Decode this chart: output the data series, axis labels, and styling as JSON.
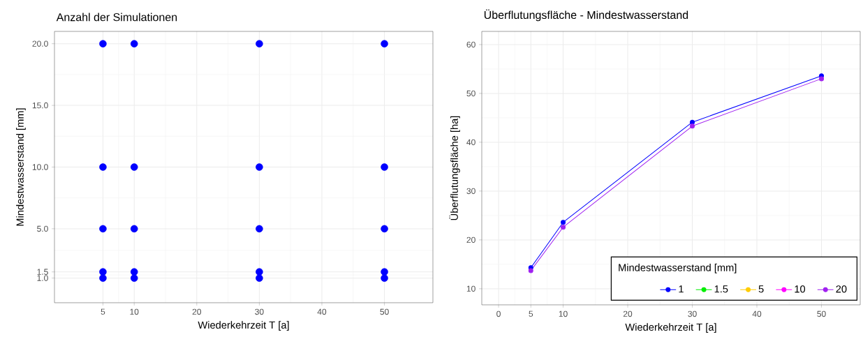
{
  "chart_data": [
    {
      "type": "scatter",
      "title": "Anzahl der Simulationen",
      "xlabel": "Wiederkehrzeit T [a]",
      "ylabel": "Mindestwasserstand [mm]",
      "x": [
        5,
        10,
        30,
        50,
        5,
        10,
        30,
        50,
        5,
        10,
        30,
        50,
        5,
        10,
        30,
        50,
        5,
        10,
        30,
        50
      ],
      "values": [
        1,
        1,
        1,
        1,
        1.5,
        1.5,
        1.5,
        1.5,
        5,
        5,
        5,
        5,
        10,
        10,
        10,
        10,
        20,
        20,
        20,
        20
      ],
      "color": "#0000ff",
      "marker": "circle",
      "xlim": [
        -2.75,
        57.75
      ],
      "ylim": [
        -1,
        21
      ],
      "xticks": [
        5,
        10,
        20,
        30,
        40,
        50
      ],
      "yticks": [
        {
          "value": 1,
          "label": "1.0"
        },
        {
          "value": 1.5,
          "label": "1.5"
        },
        {
          "value": 5,
          "label": "5.0"
        },
        {
          "value": 10,
          "label": "10.0"
        },
        {
          "value": 15,
          "label": "15.0"
        },
        {
          "value": 20,
          "label": "20.0"
        }
      ],
      "grid": true
    },
    {
      "type": "line",
      "title": "Überflutungsfläche - Mindestwasserstand",
      "xlabel": "Wiederkehrzeit T [a]",
      "ylabel": "Überflutungsfläche [ha]",
      "legend_title": "Mindestwasserstand [mm]",
      "x": [
        5,
        10,
        30,
        50
      ],
      "series": [
        {
          "name": "1",
          "color": "#0000ff",
          "values": [
            14.3,
            23.6,
            44.1,
            53.6
          ]
        },
        {
          "name": "1.5",
          "color": "#00ee00",
          "values": [
            null,
            null,
            null,
            null
          ]
        },
        {
          "name": "5",
          "color": "#ffcc00",
          "values": [
            null,
            null,
            null,
            null
          ]
        },
        {
          "name": "10",
          "color": "#ff00ff",
          "values": [
            null,
            null,
            null,
            null
          ]
        },
        {
          "name": "20",
          "color": "#a020f0",
          "values": [
            13.7,
            22.6,
            43.3,
            53.0
          ]
        }
      ],
      "marker": "circle",
      "line_style": "solid",
      "xlim": [
        -2.6,
        56
      ],
      "ylim": [
        6.7,
        62.7
      ],
      "xticks": [
        0,
        5,
        10,
        20,
        30,
        40,
        50
      ],
      "yticks": [
        10,
        20,
        30,
        40,
        50,
        60
      ],
      "grid": true,
      "legend": "bottom right"
    }
  ]
}
